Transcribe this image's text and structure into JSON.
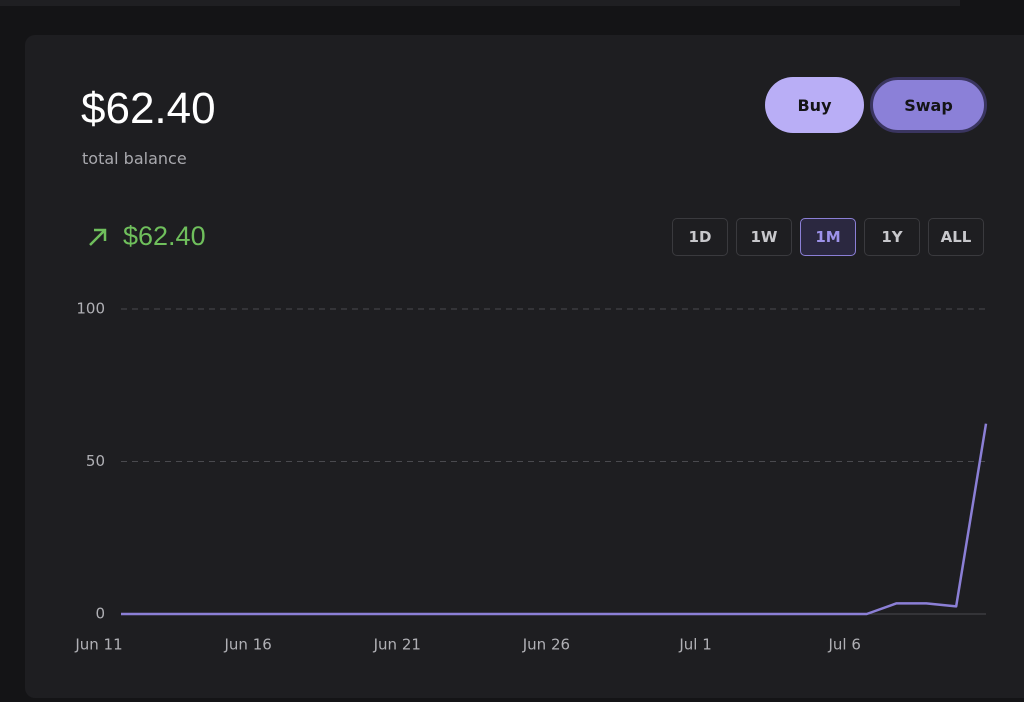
{
  "header": {
    "balance": "$62.40",
    "balance_label": "total balance",
    "change": "$62.40"
  },
  "actions": [
    "Buy",
    "Swap"
  ],
  "ranges": {
    "options": [
      "1D",
      "1W",
      "1M",
      "1Y",
      "ALL"
    ],
    "selected": "1M"
  },
  "chart_data": {
    "type": "line",
    "categories": [
      "Jun 11",
      null,
      null,
      null,
      null,
      "Jun 16",
      null,
      null,
      null,
      null,
      "Jun 21",
      null,
      null,
      null,
      null,
      "Jun 26",
      null,
      null,
      null,
      null,
      "Jul 1",
      null,
      null,
      null,
      null,
      "Jul 6",
      null,
      null,
      null,
      null
    ],
    "series": [
      {
        "color": "#8b7fd6",
        "values": [
          0,
          0,
          0,
          0,
          0,
          0,
          0,
          0,
          0,
          0,
          0,
          0,
          0,
          0,
          0,
          0,
          0,
          0,
          0,
          0,
          0,
          0,
          0,
          0,
          0,
          0,
          3.5,
          3.5,
          2.5,
          62.4
        ]
      }
    ],
    "ylim": [
      0,
      100
    ],
    "yticks": [
      0,
      50,
      100
    ],
    "grid": true
  }
}
